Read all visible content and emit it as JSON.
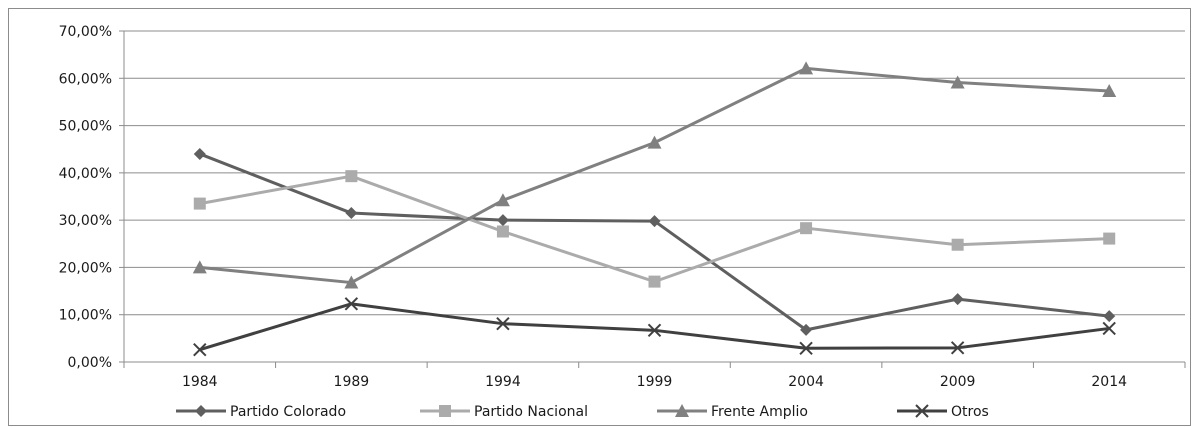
{
  "chart_data": {
    "type": "line",
    "categories": [
      "1984",
      "1989",
      "1994",
      "1999",
      "2004",
      "2009",
      "2014"
    ],
    "ylim": [
      0,
      70
    ],
    "yticks": [
      "0,00%",
      "10,00%",
      "20,00%",
      "30,00%",
      "40,00%",
      "50,00%",
      "60,00%",
      "70,00%"
    ],
    "grid": true,
    "legend_position": "bottom",
    "series": [
      {
        "name": "Partido Colorado",
        "marker": "diamond",
        "color": "#5f5f5f",
        "values": [
          44.0,
          31.5,
          30.0,
          29.8,
          6.8,
          13.3,
          9.7
        ]
      },
      {
        "name": "Partido Nacional",
        "marker": "square",
        "color": "#ababab",
        "values": [
          33.5,
          39.3,
          27.6,
          17.0,
          28.3,
          24.8,
          26.1
        ]
      },
      {
        "name": "Frente Amplio",
        "marker": "triangle",
        "color": "#808080",
        "values": [
          20.0,
          16.8,
          34.2,
          46.4,
          62.1,
          59.1,
          57.3
        ]
      },
      {
        "name": "Otros",
        "marker": "x",
        "color": "#404040",
        "values": [
          2.6,
          12.3,
          8.1,
          6.7,
          2.9,
          3.0,
          7.1
        ]
      }
    ]
  }
}
